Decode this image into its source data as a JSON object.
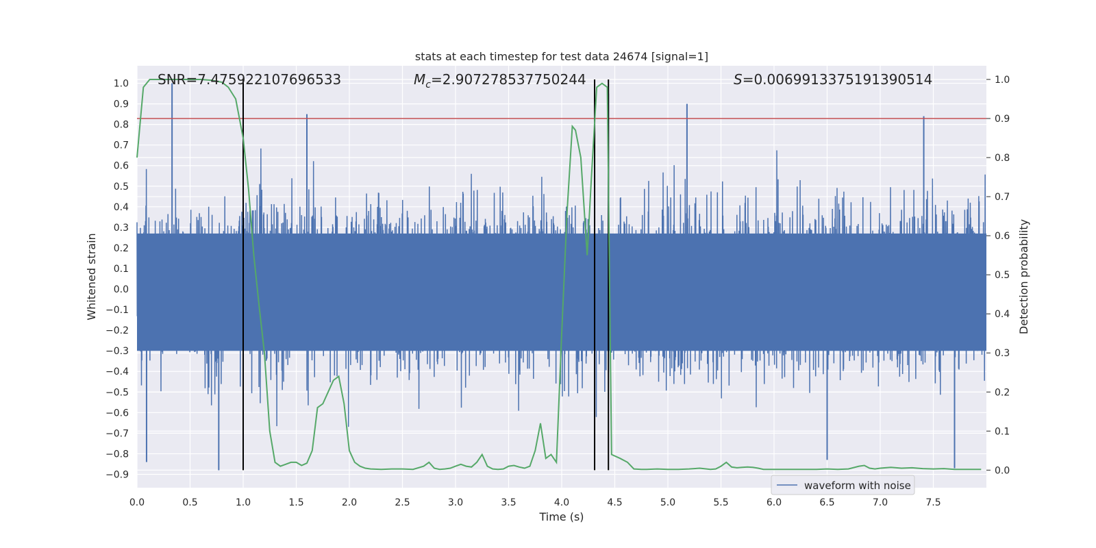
{
  "chart_data": {
    "type": "line",
    "title": "stats at each timestep for test data 24674 [signal=1]",
    "xlabel": "Time (s)",
    "ylabel_left": "Whitened strain",
    "ylabel_right": "Detection probability",
    "xlim": [
      0.0,
      8.0
    ],
    "ylim_left": [
      -0.965,
      1.085
    ],
    "ylim_right": [
      -0.045,
      1.035
    ],
    "x_ticks": [
      "0.0",
      "0.5",
      "1.0",
      "1.5",
      "2.0",
      "2.5",
      "3.0",
      "3.5",
      "4.0",
      "4.5",
      "5.0",
      "5.5",
      "6.0",
      "6.5",
      "7.0",
      "7.5"
    ],
    "y_ticks_left": [
      "−0.9",
      "−0.8",
      "−0.7",
      "−0.6",
      "−0.5",
      "−0.4",
      "−0.3",
      "−0.2",
      "−0.1",
      "0.0",
      "0.1",
      "0.2",
      "0.3",
      "0.4",
      "0.5",
      "0.6",
      "0.7",
      "0.8",
      "0.9",
      "1.0"
    ],
    "y_ticks_right": [
      "0.0",
      "0.1",
      "0.2",
      "0.3",
      "0.4",
      "0.5",
      "0.6",
      "0.7",
      "0.8",
      "0.9",
      "1.0"
    ],
    "grid": true,
    "legend": {
      "label": "waveform with noise",
      "placement": "lower-right"
    },
    "annotations": {
      "snr": "SNR=7.475922107696533",
      "mc_symbol": "M",
      "mc_sub": "c",
      "mc_value": "=2.907278537750244",
      "s_symbol": "S",
      "s_value": "=0.0069913375191390514"
    },
    "colors": {
      "waveform": "#4c72b0",
      "probability": "#55a868",
      "threshold": "#c44e52",
      "markers": "#000000",
      "axes_bg": "#eaeaf2"
    },
    "threshold_probability": 0.9,
    "vertical_markers_s": [
      1.0,
      4.31,
      4.44
    ],
    "series": [
      {
        "name": "waveform with noise",
        "axis": "left",
        "description_envelope": {
          "typical_top": 0.44,
          "typical_bottom": -0.46,
          "noted_spikes": [
            [
              0.33,
              1.0
            ],
            [
              0.77,
              -0.88
            ],
            [
              0.09,
              -0.84
            ],
            [
              1.6,
              0.85
            ],
            [
              4.44,
              0.95
            ],
            [
              5.18,
              0.9
            ],
            [
              7.41,
              0.84
            ],
            [
              7.7,
              -0.87
            ],
            [
              6.5,
              -0.83
            ]
          ]
        }
      },
      {
        "name": "",
        "axis": "right",
        "x": [
          0.0,
          0.06,
          0.12,
          0.2,
          0.3,
          0.4,
          0.5,
          0.6,
          0.7,
          0.8,
          0.86,
          0.93,
          1.0,
          1.05,
          1.1,
          1.15,
          1.2,
          1.25,
          1.3,
          1.35,
          1.4,
          1.45,
          1.5,
          1.55,
          1.6,
          1.65,
          1.7,
          1.75,
          1.8,
          1.85,
          1.9,
          1.95,
          2.0,
          2.05,
          2.1,
          2.15,
          2.2,
          2.3,
          2.4,
          2.5,
          2.6,
          2.7,
          2.75,
          2.8,
          2.85,
          2.9,
          2.95,
          3.0,
          3.05,
          3.1,
          3.15,
          3.2,
          3.25,
          3.3,
          3.35,
          3.4,
          3.45,
          3.5,
          3.55,
          3.6,
          3.65,
          3.7,
          3.75,
          3.8,
          3.85,
          3.9,
          3.95,
          4.0,
          4.05,
          4.1,
          4.13,
          4.18,
          4.24,
          4.28,
          4.33,
          4.38,
          4.43,
          4.47,
          4.55,
          4.62,
          4.68,
          4.75,
          4.8,
          4.9,
          5.0,
          5.1,
          5.2,
          5.3,
          5.4,
          5.45,
          5.5,
          5.55,
          5.6,
          5.65,
          5.7,
          5.75,
          5.8,
          5.85,
          5.9,
          6.0,
          6.1,
          6.2,
          6.3,
          6.4,
          6.5,
          6.6,
          6.7,
          6.8,
          6.85,
          6.9,
          6.95,
          7.0,
          7.1,
          7.2,
          7.3,
          7.4,
          7.5,
          7.6,
          7.7,
          7.8,
          7.9,
          7.95
        ],
        "values": [
          0.8,
          0.98,
          1.0,
          1.0,
          1.0,
          1.0,
          1.0,
          1.0,
          0.998,
          0.993,
          0.98,
          0.95,
          0.85,
          0.72,
          0.55,
          0.42,
          0.3,
          0.1,
          0.02,
          0.01,
          0.015,
          0.02,
          0.02,
          0.012,
          0.018,
          0.05,
          0.16,
          0.17,
          0.2,
          0.23,
          0.24,
          0.17,
          0.05,
          0.02,
          0.01,
          0.005,
          0.003,
          0.002,
          0.003,
          0.003,
          0.002,
          0.01,
          0.02,
          0.005,
          0.002,
          0.003,
          0.005,
          0.01,
          0.015,
          0.01,
          0.008,
          0.02,
          0.04,
          0.01,
          0.003,
          0.002,
          0.003,
          0.01,
          0.012,
          0.008,
          0.005,
          0.01,
          0.05,
          0.12,
          0.03,
          0.04,
          0.02,
          0.35,
          0.66,
          0.88,
          0.87,
          0.8,
          0.55,
          0.75,
          0.98,
          0.99,
          0.98,
          0.04,
          0.03,
          0.02,
          0.003,
          0.002,
          0.002,
          0.003,
          0.002,
          0.002,
          0.003,
          0.005,
          0.002,
          0.003,
          0.01,
          0.02,
          0.008,
          0.006,
          0.007,
          0.008,
          0.007,
          0.005,
          0.002,
          0.002,
          0.002,
          0.002,
          0.002,
          0.002,
          0.003,
          0.002,
          0.003,
          0.01,
          0.012,
          0.005,
          0.003,
          0.005,
          0.007,
          0.005,
          0.006,
          0.004,
          0.003,
          0.004,
          0.002,
          0.002,
          0.002,
          0.002
        ]
      }
    ]
  }
}
